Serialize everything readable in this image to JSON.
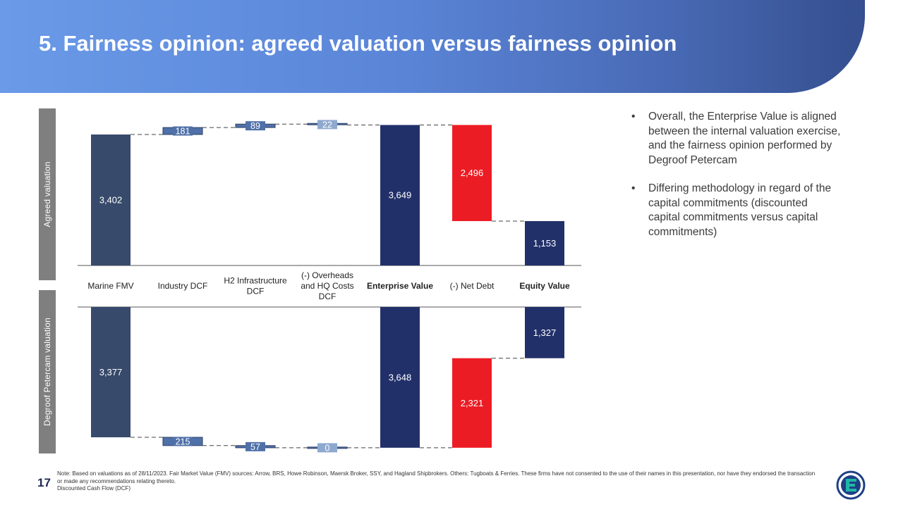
{
  "title": "5. Fairness opinion: agreed valuation versus fairness opinion",
  "side_labels": {
    "top": "Agreed valuation",
    "bottom": "Degroof Petercam valuation"
  },
  "bullets": [
    "Overall, the Enterprise Value is aligned between the internal valuation exercise, and the fairness opinion performed by Degroof Petercam",
    "Differing methodology in regard of the capital commitments (discounted capital commitments versus capital commitments)"
  ],
  "page_number": "17",
  "footnote": "Note: Based on valuations as of 28/11/2023. Fair Market Value (FMV) sources: Arrow, BRS, Howe Robinson, Maersk Broker, SSY, and Hagland Shipbrokers. Others: Tugboats & Ferries. These firms have not consented to the use of their names in this presentation, nor have they endorsed the transaction or made any recommendations relating thereto.",
  "footnote_2": "Discounted Cash Flow (DCF)",
  "colors": {
    "navy": "#374a6b",
    "dark_navy": "#22306a",
    "red": "#ec1c24",
    "small_bar": "#4f70a8",
    "label_box": "#4f70a8",
    "label_box_light": "#8ea9cf"
  },
  "chart_data": {
    "type": "bar",
    "subtype": "waterfall",
    "categories": [
      "Marine FMV",
      "Industry DCF",
      "H2 Infrastructure DCF",
      "(-) Overheads and HQ Costs DCF",
      "Enterprise Value",
      "(-) Net Debt",
      "Equity Value"
    ],
    "bold_categories": [
      "Enterprise Value",
      "Equity Value"
    ],
    "panels": [
      {
        "name": "Agreed valuation",
        "orientation": "up",
        "ylim": [
          0,
          3649
        ],
        "bars": [
          {
            "label": "3,402",
            "start": 0,
            "end": 3402,
            "kind": "total"
          },
          {
            "label": "181",
            "start": 3402,
            "end": 3583,
            "kind": "step"
          },
          {
            "label": "89",
            "start": 3583,
            "end": 3672,
            "kind": "step"
          },
          {
            "label": "22",
            "start": 3672,
            "end": 3649,
            "kind": "step"
          },
          {
            "label": "3,649",
            "start": 0,
            "end": 3649,
            "kind": "subtotal"
          },
          {
            "label": "2,496",
            "start": 3649,
            "end": 1153,
            "kind": "negative"
          },
          {
            "label": "1,153",
            "start": 0,
            "end": 1153,
            "kind": "subtotal"
          }
        ]
      },
      {
        "name": "Degroof Petercam valuation",
        "orientation": "down",
        "ylim": [
          0,
          3648
        ],
        "bars": [
          {
            "label": "3,377",
            "start": 0,
            "end": 3377,
            "kind": "total"
          },
          {
            "label": "215",
            "start": 3377,
            "end": 3592,
            "kind": "step"
          },
          {
            "label": "57",
            "start": 3592,
            "end": 3649,
            "kind": "step"
          },
          {
            "label": "0",
            "start": 3649,
            "end": 3648,
            "kind": "step"
          },
          {
            "label": "3,648",
            "start": 0,
            "end": 3648,
            "kind": "subtotal"
          },
          {
            "label": "2,321",
            "start": 3648,
            "end": 1327,
            "kind": "negative"
          },
          {
            "label": "1,327",
            "start": 0,
            "end": 1327,
            "kind": "subtotal"
          }
        ]
      }
    ]
  }
}
